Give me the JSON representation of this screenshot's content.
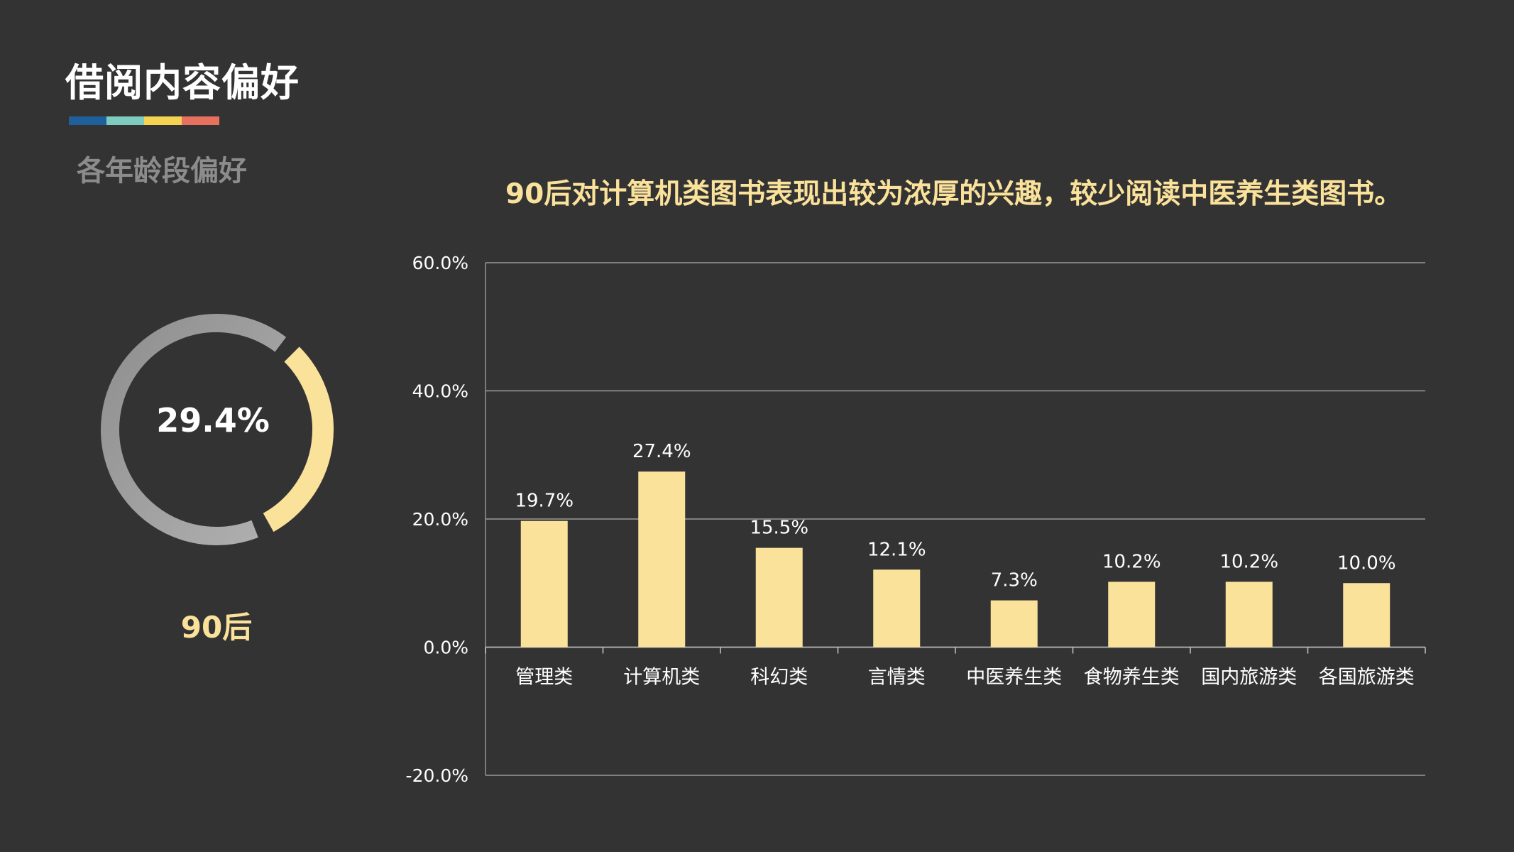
{
  "page": {
    "title": "借阅内容偏好",
    "subtitle": "各年龄段偏好",
    "insight": "90后对计算机类图书表现出较为浓厚的兴趣，较少阅读中医养生类图书。"
  },
  "accent_colors": [
    "#1f5f9c",
    "#7ecbc0",
    "#f5d252",
    "#e8705f"
  ],
  "donut": {
    "value": 29.4,
    "label": "29.4%",
    "group": "90后",
    "highlight_color": "#fbe29b",
    "base_color": "#a6a6a6"
  },
  "chart_data": {
    "type": "bar",
    "categories": [
      "管理类",
      "计算机类",
      "科幻类",
      "言情类",
      "中医养生类",
      "食物养生类",
      "国内旅游类",
      "各国旅游类"
    ],
    "values": [
      19.7,
      27.4,
      15.5,
      12.1,
      7.3,
      10.2,
      10.2,
      10.0
    ],
    "data_labels": [
      "19.7%",
      "27.4%",
      "15.5%",
      "12.1%",
      "7.3%",
      "10.2%",
      "10.2%",
      "10.0%"
    ],
    "ylim": [
      -20,
      60
    ],
    "yticks": [
      -20,
      0,
      20,
      40,
      60
    ],
    "ytick_labels": [
      "-20.0%",
      "0.0%",
      "20.0%",
      "40.0%",
      "60.0%"
    ],
    "bar_color": "#fbe29b",
    "grid": true,
    "title": "",
    "xlabel": "",
    "ylabel": ""
  }
}
